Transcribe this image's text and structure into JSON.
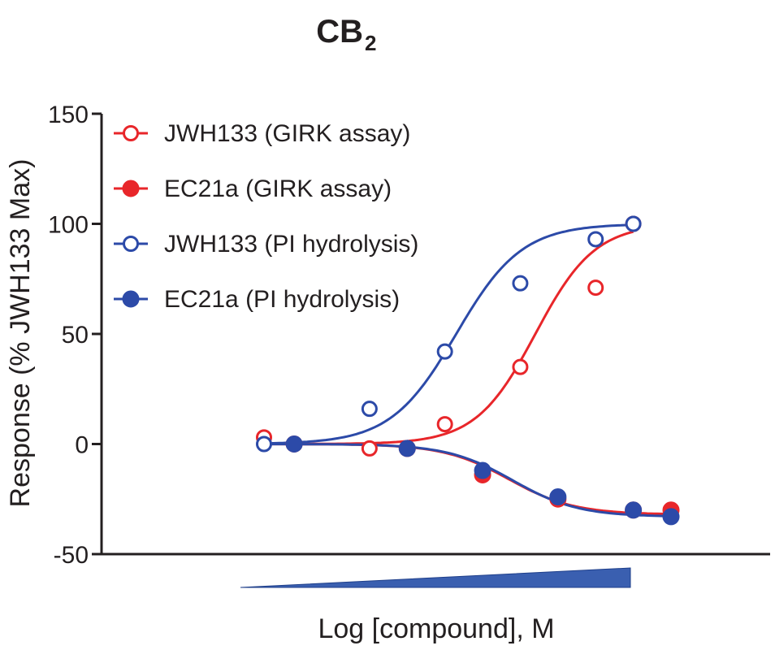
{
  "chart_data": {
    "type": "line",
    "title": "CB",
    "title_subscript": "2",
    "ylabel": "Response (% JWH133 Max)",
    "xlabel": "Log [compound], M",
    "ylim": [
      -50,
      150
    ],
    "yticks": [
      -50,
      0,
      50,
      100,
      150
    ],
    "x_axis": "no numeric ticks; increasing compound concentration indicated by a blue wedge",
    "wedge_color": "#3a5fb0",
    "xlim": [
      -10.5,
      -4.5
    ],
    "legend_position": "top-left",
    "series": [
      {
        "name": "JWH133 (GIRK assay)",
        "color": "#e8262a",
        "marker": "open-circle",
        "x": [
          -10.0,
          -8.6,
          -7.6,
          -6.6,
          -5.6
        ],
        "y": [
          3,
          -2,
          9,
          35,
          71
        ]
      },
      {
        "name": "EC21a (GIRK assay)",
        "color": "#e8262a",
        "marker": "filled-circle",
        "x": [
          -9.6,
          -8.1,
          -7.1,
          -6.1,
          -5.1,
          -4.6
        ],
        "y": [
          0,
          -2,
          -14,
          -25,
          -30,
          -30
        ]
      },
      {
        "name": "JWH133 (PI hydrolysis)",
        "color": "#2c4aa8",
        "marker": "open-circle",
        "x": [
          -10.0,
          -8.6,
          -7.6,
          -6.6,
          -5.6,
          -5.1
        ],
        "y": [
          0,
          16,
          42,
          73,
          93,
          100
        ]
      },
      {
        "name": "EC21a (PI hydrolysis)",
        "color": "#2c4aa8",
        "marker": "filled-circle",
        "x": [
          -9.6,
          -8.1,
          -7.1,
          -6.1,
          -5.1,
          -4.6
        ],
        "y": [
          0,
          -2,
          -12,
          -24,
          -30,
          -33
        ]
      }
    ],
    "fits": [
      {
        "series": 0,
        "bottom": 0,
        "top": 100,
        "logec50": -6.4,
        "hill": 1.1
      },
      {
        "series": 1,
        "bottom": 0,
        "top": -32,
        "logec50": -6.75,
        "hill": 1.0
      },
      {
        "series": 2,
        "bottom": 0,
        "top": 100,
        "logec50": -7.45,
        "hill": 1.0
      },
      {
        "series": 3,
        "bottom": 0,
        "top": -33,
        "logec50": -6.7,
        "hill": 1.0
      }
    ],
    "extra_points": [
      {
        "series": 0,
        "x": -5.1,
        "y": 100
      }
    ]
  }
}
